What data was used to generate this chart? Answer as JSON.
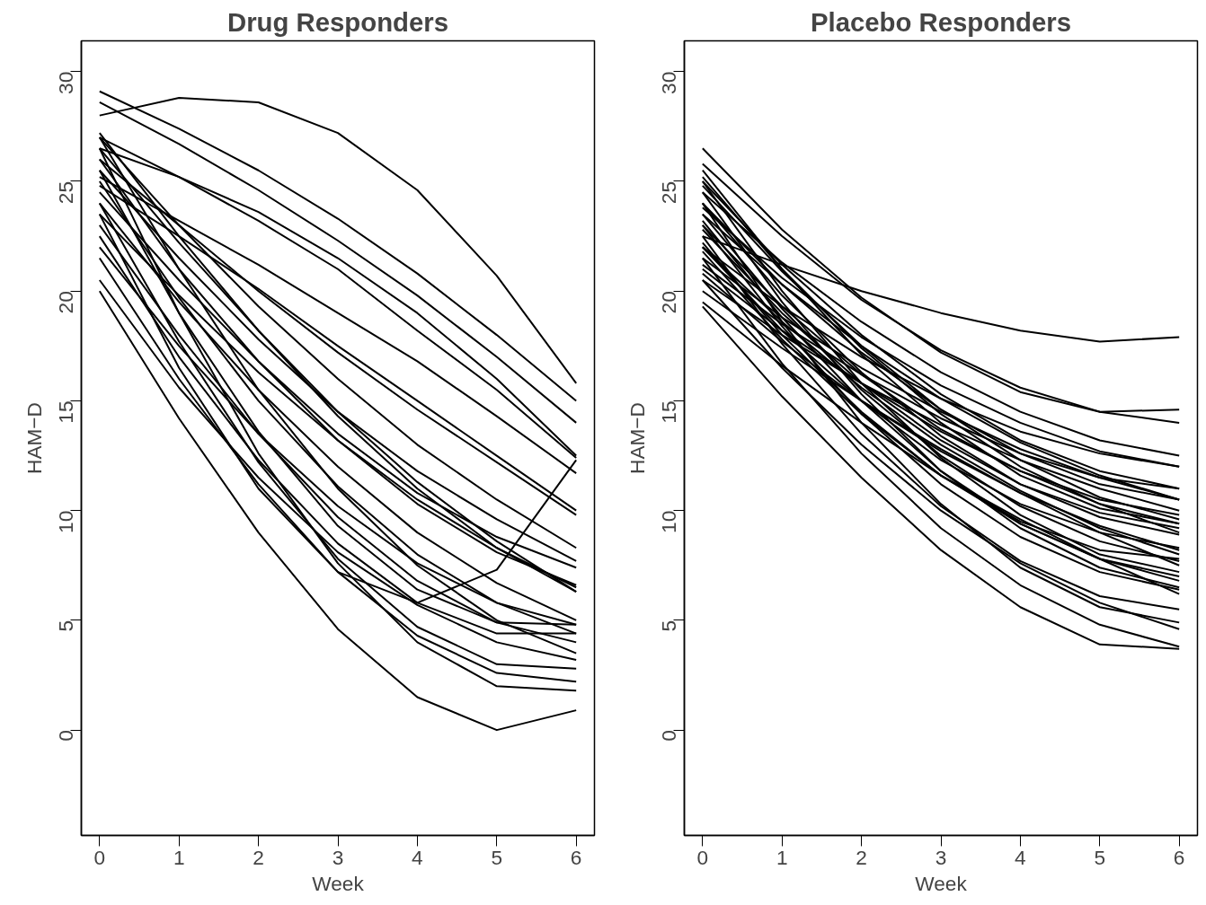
{
  "chart_data": [
    {
      "type": "line",
      "title": "Drug Responders",
      "xlabel": "Week",
      "ylabel": "HAM−D",
      "x": [
        0,
        1,
        2,
        3,
        4,
        5,
        6
      ],
      "xlim": [
        -0.23,
        6.23
      ],
      "ylim": [
        -4.8,
        31.4
      ],
      "xticks": [
        0,
        1,
        2,
        3,
        4,
        5,
        6
      ],
      "yticks": [
        0,
        5,
        10,
        15,
        20,
        25,
        30
      ],
      "line_style": "solid",
      "series": [
        {
          "color": "#000000",
          "values": [
            28,
            28.8,
            28.6,
            27.2,
            24.6,
            20.7,
            15.8
          ]
        },
        {
          "color": "#000000",
          "values": [
            29.1,
            27.4,
            25.5,
            23.3,
            20.8,
            18.0,
            15.0
          ]
        },
        {
          "color": "#000000",
          "values": [
            28.6,
            26.7,
            24.6,
            22.3,
            19.8,
            17.0,
            14.0
          ]
        },
        {
          "color": "#000000",
          "values": [
            27,
            25.2,
            23.2,
            21,
            18.2,
            15.5,
            12.4
          ]
        },
        {
          "color": "#000000",
          "values": [
            26.5,
            25.2,
            23.6,
            21.5,
            19,
            16,
            12.5
          ]
        },
        {
          "color": "#000000",
          "values": [
            25.2,
            23.2,
            21.2,
            19,
            16.8,
            14.3,
            11.7
          ]
        },
        {
          "color": "#000000",
          "values": [
            24.8,
            22.5,
            20.1,
            17.5,
            15,
            12.5,
            10.0
          ]
        },
        {
          "color": "#000000",
          "values": [
            26,
            23,
            20,
            17.2,
            14.6,
            12.2,
            9.8
          ]
        },
        {
          "color": "#000000",
          "values": [
            27,
            23,
            19.3,
            16,
            13,
            10.5,
            8.3
          ]
        },
        {
          "color": "#000000",
          "values": [
            25.5,
            21.5,
            17.8,
            14.5,
            11.8,
            9.6,
            7.7
          ]
        },
        {
          "color": "#000000",
          "values": [
            26,
            21,
            16.8,
            13.2,
            10.3,
            8.1,
            6.6
          ]
        },
        {
          "color": "#000000",
          "values": [
            24,
            19.5,
            15.5,
            12,
            9,
            6.7,
            5.0
          ]
        },
        {
          "color": "#000000",
          "values": [
            25,
            19.7,
            15,
            11.1,
            8,
            5.8,
            4.4
          ]
        },
        {
          "color": "#000000",
          "values": [
            27,
            21,
            15.5,
            11,
            7.5,
            5.0,
            3.5
          ]
        },
        {
          "color": "#000000",
          "values": [
            23,
            18,
            13.5,
            9.7,
            6.8,
            4.9,
            4.0
          ]
        },
        {
          "color": "#000000",
          "values": [
            22.5,
            17,
            12.3,
            8.5,
            5.8,
            4.4,
            4.4
          ]
        },
        {
          "color": "#000000",
          "values": [
            24,
            17.7,
            12.2,
            7.8,
            4.7,
            3,
            2.8
          ]
        },
        {
          "color": "#000000",
          "values": [
            26.5,
            19,
            12.6,
            7.6,
            4,
            2,
            1.8
          ]
        },
        {
          "color": "#000000",
          "values": [
            21.5,
            16,
            11.2,
            7.2,
            4.3,
            2.6,
            2.2
          ]
        },
        {
          "color": "#000000",
          "values": [
            20.0,
            14.2,
            9.0,
            4.6,
            1.5,
            0.0,
            0.9
          ]
        },
        {
          "color": "#000000",
          "values": [
            23.5,
            16.5,
            11,
            7.2,
            5.8,
            7.3,
            12.3
          ]
        },
        {
          "color": "#000000",
          "values": [
            25.5,
            19,
            13.6,
            9.3,
            6.4,
            4.9,
            4.8
          ]
        },
        {
          "color": "#000000",
          "values": [
            20.5,
            15.6,
            11.5,
            8.1,
            5.7,
            4.0,
            3.2
          ]
        },
        {
          "color": "#000000",
          "values": [
            27.2,
            22.5,
            18.2,
            14.3,
            11,
            8.3,
            6.3
          ]
        },
        {
          "color": "#000000",
          "values": [
            23.5,
            19.8,
            16.3,
            13.2,
            10.5,
            8.3,
            6.5
          ]
        },
        {
          "color": "#000000",
          "values": [
            26.5,
            22.2,
            18.2,
            14.5,
            11.3,
            8.6,
            6.3
          ]
        },
        {
          "color": "#000000",
          "values": [
            22,
            17.5,
            13.5,
            10.2,
            7.6,
            5.8,
            4.8
          ]
        },
        {
          "color": "#000000",
          "values": [
            24.5,
            20.5,
            16.8,
            13.5,
            10.8,
            8.8,
            7.4
          ]
        }
      ]
    },
    {
      "type": "line",
      "title": "Placebo Responders",
      "xlabel": "Week",
      "ylabel": "HAM−D",
      "x": [
        0,
        1,
        2,
        3,
        4,
        5,
        6
      ],
      "xlim": [
        -0.23,
        6.23
      ],
      "ylim": [
        -4.8,
        31.4
      ],
      "xticks": [
        0,
        1,
        2,
        3,
        4,
        5,
        6
      ],
      "yticks": [
        0,
        5,
        10,
        15,
        20,
        25,
        30
      ],
      "line_style": "solid",
      "series": [
        {
          "color": "#000000",
          "values": [
            22.5,
            21.2,
            20.0,
            19,
            18.2,
            17.7,
            17.9
          ]
        },
        {
          "color": "#000000",
          "values": [
            26.5,
            22.8,
            19.7,
            17.2,
            15.4,
            14.5,
            14.6
          ]
        },
        {
          "color": "#000000",
          "values": [
            25.8,
            22.5,
            19.6,
            17.3,
            15.6,
            14.5,
            14.0
          ]
        },
        {
          "color": "#000000",
          "values": [
            24.5,
            21.3,
            18.6,
            16.3,
            14.5,
            13.2,
            12.5
          ]
        },
        {
          "color": "#000000",
          "values": [
            23.8,
            20.6,
            17.9,
            15.7,
            14,
            12.7,
            12.0
          ]
        },
        {
          "color": "#000000",
          "values": [
            25,
            21.2,
            18,
            15.3,
            13.2,
            11.8,
            11.0
          ]
        },
        {
          "color": "#000000",
          "values": [
            22,
            19.3,
            17,
            15.1,
            13.6,
            12.6,
            12.0
          ]
        },
        {
          "color": "#000000",
          "values": [
            24,
            20.3,
            17.2,
            14.6,
            12.6,
            11.2,
            10.5
          ]
        },
        {
          "color": "#000000",
          "values": [
            21.5,
            18.8,
            16.5,
            14.5,
            12.8,
            11.5,
            10.5
          ]
        },
        {
          "color": "#000000",
          "values": [
            23,
            19.3,
            16.2,
            13.7,
            11.8,
            10.5,
            9.8
          ]
        },
        {
          "color": "#000000",
          "values": [
            25.5,
            21,
            17.1,
            14,
            11.6,
            10.1,
            9.4
          ]
        },
        {
          "color": "#000000",
          "values": [
            20.5,
            18,
            15.8,
            13.9,
            12.3,
            11,
            10
          ]
        },
        {
          "color": "#000000",
          "values": [
            22.8,
            19,
            15.8,
            13.2,
            11.2,
            9.9,
            9.2
          ]
        },
        {
          "color": "#000000",
          "values": [
            24,
            19.8,
            16.3,
            13.4,
            11.2,
            9.7,
            8.9
          ]
        },
        {
          "color": "#000000",
          "values": [
            21,
            18.2,
            15.8,
            13.6,
            11.8,
            10.3,
            9.0
          ]
        },
        {
          "color": "#000000",
          "values": [
            23.5,
            19.2,
            15.5,
            12.5,
            10.2,
            8.6,
            7.7
          ]
        },
        {
          "color": "#000000",
          "values": [
            25,
            20,
            15.8,
            12.4,
            9.8,
            8,
            7.2
          ]
        },
        {
          "color": "#000000",
          "values": [
            22,
            18.2,
            15,
            12.3,
            10.3,
            9.0,
            8.3
          ]
        },
        {
          "color": "#000000",
          "values": [
            20,
            17.4,
            15,
            12.8,
            10.8,
            9,
            7.5
          ]
        },
        {
          "color": "#000000",
          "values": [
            24.5,
            19.5,
            15.3,
            11.8,
            9.2,
            7.4,
            6.5
          ]
        },
        {
          "color": "#000000",
          "values": [
            21.8,
            17.8,
            14.4,
            11.6,
            9.4,
            7.8,
            6.8
          ]
        },
        {
          "color": "#000000",
          "values": [
            23,
            18.4,
            14.4,
            11.2,
            8.8,
            7.2,
            6.4
          ]
        },
        {
          "color": "#000000",
          "values": [
            19.5,
            16.6,
            14,
            11.6,
            9.6,
            7.8,
            6.2
          ]
        },
        {
          "color": "#000000",
          "values": [
            22.5,
            17.6,
            13.5,
            10.2,
            7.7,
            6.1,
            5.5
          ]
        },
        {
          "color": "#000000",
          "values": [
            24,
            18.6,
            14,
            10.3,
            7.4,
            5.6,
            4.9
          ]
        },
        {
          "color": "#000000",
          "values": [
            20.5,
            16.5,
            13,
            10,
            7.6,
            5.8,
            4.6
          ]
        },
        {
          "color": "#000000",
          "values": [
            21.5,
            16.7,
            12.6,
            9.2,
            6.6,
            4.8,
            3.8
          ]
        },
        {
          "color": "#000000",
          "values": [
            19.3,
            15.2,
            11.5,
            8.2,
            5.6,
            3.9,
            3.7
          ]
        },
        {
          "color": "#000000",
          "values": [
            23.2,
            18.8,
            15,
            11.8,
            9.4,
            7.8,
            7.0
          ]
        },
        {
          "color": "#000000",
          "values": [
            22,
            18.6,
            15.6,
            13,
            10.9,
            9.2,
            8
          ]
        },
        {
          "color": "#000000",
          "values": [
            25.2,
            21,
            17.4,
            14.4,
            12,
            10.3,
            9.4
          ]
        },
        {
          "color": "#000000",
          "values": [
            20.8,
            17.7,
            15,
            12.7,
            10.8,
            9.3,
            8.2
          ]
        },
        {
          "color": "#000000",
          "values": [
            23.5,
            20.3,
            17.5,
            15.1,
            13.1,
            11.6,
            10.5
          ]
        },
        {
          "color": "#000000",
          "values": [
            21.2,
            18.5,
            16.2,
            14.2,
            12.6,
            11.5,
            11.0
          ]
        },
        {
          "color": "#000000",
          "values": [
            24.8,
            20.9,
            17.5,
            14.6,
            12.3,
            10.6,
            9.6
          ]
        },
        {
          "color": "#000000",
          "values": [
            22.2,
            18.0,
            14.5,
            11.6,
            9.5,
            8.2,
            7.8
          ]
        }
      ]
    }
  ]
}
